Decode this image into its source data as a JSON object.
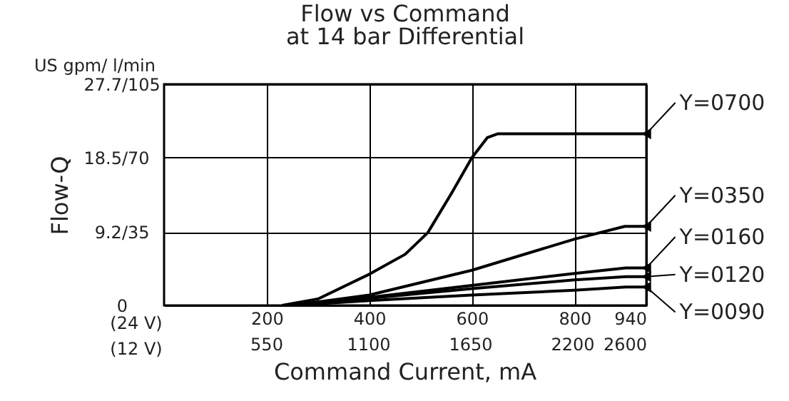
{
  "chart_data": {
    "type": "line",
    "title": "Flow vs Command",
    "subtitle": "at 14 bar Differential",
    "xlabel": "(24 V)",
    "x2label": "(12 V)",
    "ylabel": "Flow-Q",
    "annotations": [
      "US gpm/ l/min",
      "Command Current, mA"
    ],
    "xlim": [
      0,
      940
    ],
    "ylim": [
      0,
      27.7
    ],
    "xticks": [
      200,
      400,
      600,
      800,
      940
    ],
    "x2lim": [
      0,
      2600
    ],
    "x2ticks": [
      550,
      1100,
      1650,
      2200,
      2600
    ],
    "yticks": [
      0,
      {
        "value": 9.2,
        "label": "9.2/"
      },
      {
        "value": 18.5,
        "label": "18.5/"
      },
      {
        "value": 27.7,
        "label": "27.7/"
      }
    ],
    "y2lim": [
      0,
      105
    ],
    "y2ticks": [
      35,
      70,
      105
    ],
    "grid": true,
    "line_style": "solid",
    "series": [
      {
        "name": "Y=0700",
        "color": "#000000",
        "x": [
          230,
          300,
          400,
          470,
          514,
          560,
          600,
          630,
          651,
          940
        ],
        "values": [
          0,
          0.8,
          3.9,
          6.4,
          9.1,
          14,
          18.5,
          21,
          21.5,
          21.5
        ]
      },
      {
        "name": "Y=0350",
        "color": "#000000",
        "x": [
          250,
          400,
          600,
          800,
          898,
          940
        ],
        "values": [
          0,
          1.3,
          4.4,
          8.3,
          9.9,
          9.9
        ]
      },
      {
        "name": "Y=0160",
        "color": "#000000",
        "x": [
          250,
          400,
          600,
          800,
          900,
          940
        ],
        "values": [
          0,
          1.0,
          2.5,
          4.0,
          4.7,
          4.7
        ]
      },
      {
        "name": "Y=0120",
        "color": "#000000",
        "x": [
          250,
          400,
          600,
          800,
          900,
          940
        ],
        "values": [
          0,
          0.9,
          2.1,
          3.2,
          3.6,
          3.6
        ]
      },
      {
        "name": "Y=0090",
        "color": "#000000",
        "x": [
          250,
          400,
          600,
          800,
          900,
          940
        ],
        "values": [
          0,
          0.6,
          1.3,
          1.9,
          2.3,
          2.3
        ]
      }
    ]
  }
}
